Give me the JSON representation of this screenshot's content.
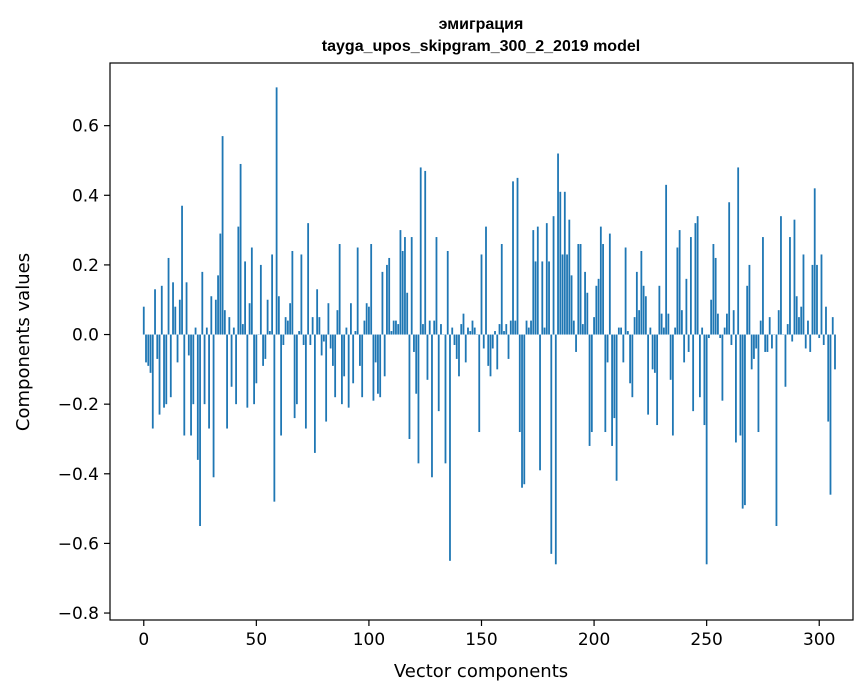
{
  "chart_data": {
    "type": "bar",
    "title_line1": "эмиграция",
    "title_line2": "tayga_upos_skipgram_300_2_2019 model",
    "xlabel": "Vector components",
    "ylabel": "Components values",
    "xlim": [
      -15,
      315
    ],
    "ylim": [
      -0.82,
      0.78
    ],
    "xticks": [
      0,
      50,
      100,
      150,
      200,
      250,
      300
    ],
    "xtick_labels": [
      "0",
      "50",
      "100",
      "150",
      "200",
      "250",
      "300"
    ],
    "yticks": [
      -0.8,
      -0.6,
      -0.4,
      -0.2,
      0.0,
      0.2,
      0.4,
      0.6
    ],
    "ytick_labels": [
      "−0.8",
      "−0.6",
      "−0.4",
      "−0.2",
      "0.0",
      "0.2",
      "0.4",
      "0.6"
    ],
    "bar_color": "#1f77b4",
    "values": [
      0.08,
      -0.08,
      -0.09,
      -0.11,
      -0.27,
      0.13,
      -0.07,
      -0.23,
      0.14,
      -0.21,
      -0.2,
      0.22,
      -0.18,
      0.15,
      0.08,
      -0.08,
      0.1,
      0.37,
      -0.29,
      0.15,
      -0.06,
      -0.29,
      -0.2,
      0.02,
      -0.36,
      -0.55,
      0.18,
      -0.2,
      0.02,
      -0.27,
      0.11,
      -0.41,
      0.1,
      0.17,
      0.29,
      0.57,
      0.07,
      -0.27,
      0.05,
      -0.15,
      0.02,
      -0.2,
      0.31,
      0.49,
      0.03,
      0.21,
      -0.21,
      0.09,
      0.25,
      -0.2,
      -0.14,
      0.0,
      0.2,
      -0.09,
      -0.07,
      0.1,
      0.01,
      0.23,
      -0.48,
      0.71,
      0.11,
      -0.29,
      -0.03,
      0.05,
      0.04,
      0.09,
      0.24,
      -0.24,
      -0.2,
      0.01,
      0.23,
      -0.03,
      -0.27,
      0.32,
      -0.03,
      0.05,
      -0.34,
      0.13,
      0.05,
      -0.06,
      -0.02,
      -0.25,
      0.09,
      -0.04,
      -0.09,
      -0.18,
      0.07,
      0.26,
      -0.2,
      -0.12,
      0.02,
      -0.21,
      0.09,
      -0.14,
      0.01,
      0.25,
      -0.09,
      -0.18,
      0.04,
      0.09,
      0.08,
      0.26,
      -0.19,
      -0.08,
      -0.17,
      -0.18,
      0.18,
      -0.12,
      0.2,
      0.22,
      0.01,
      0.04,
      0.04,
      0.03,
      0.3,
      0.24,
      0.28,
      0.12,
      -0.3,
      0.28,
      -0.05,
      -0.17,
      -0.37,
      0.48,
      0.03,
      0.47,
      -0.13,
      0.04,
      -0.41,
      0.04,
      0.28,
      -0.22,
      0.03,
      0.0,
      -0.37,
      0.24,
      -0.65,
      0.02,
      -0.03,
      -0.07,
      -0.12,
      0.03,
      0.06,
      -0.08,
      0.02,
      0.01,
      0.04,
      0.02,
      0.0,
      -0.28,
      0.23,
      -0.04,
      0.31,
      -0.09,
      -0.12,
      -0.04,
      0.01,
      -0.1,
      0.03,
      0.26,
      0.01,
      0.03,
      -0.07,
      0.04,
      0.44,
      0.04,
      0.45,
      -0.28,
      -0.44,
      -0.43,
      0.04,
      0.02,
      0.04,
      0.3,
      0.21,
      0.31,
      -0.39,
      0.21,
      0.02,
      0.32,
      0.21,
      -0.63,
      0.34,
      -0.66,
      0.52,
      0.41,
      0.23,
      0.41,
      0.23,
      0.33,
      0.17,
      0.04,
      -0.05,
      0.26,
      0.26,
      0.03,
      0.18,
      0.12,
      -0.32,
      -0.28,
      0.05,
      0.14,
      0.16,
      0.31,
      0.26,
      -0.28,
      -0.08,
      0.29,
      -0.32,
      -0.24,
      -0.42,
      0.02,
      0.02,
      -0.08,
      0.25,
      0.01,
      -0.14,
      -0.18,
      0.05,
      0.18,
      0.07,
      0.24,
      0.14,
      0.11,
      -0.23,
      0.02,
      -0.1,
      -0.11,
      -0.26,
      0.14,
      0.06,
      0.02,
      0.43,
      0.06,
      -0.13,
      -0.29,
      0.02,
      0.25,
      0.3,
      0.07,
      -0.08,
      0.16,
      -0.05,
      0.28,
      -0.22,
      0.32,
      0.34,
      -0.18,
      0.02,
      -0.26,
      -0.66,
      -0.01,
      0.1,
      0.26,
      0.22,
      0.06,
      -0.01,
      -0.19,
      0.02,
      0.06,
      0.38,
      -0.03,
      0.07,
      -0.31,
      0.48,
      -0.29,
      -0.5,
      -0.49,
      0.14,
      0.2,
      -0.1,
      -0.07,
      -0.04,
      -0.28,
      0.04,
      0.28,
      -0.05,
      -0.05,
      0.05,
      -0.04,
      0.0,
      -0.55,
      0.07,
      0.34,
      0.0,
      -0.15,
      0.03,
      0.28,
      -0.02,
      0.33,
      0.11,
      0.05,
      0.08,
      0.23,
      -0.04,
      0.04,
      -0.05,
      0.2,
      0.42,
      0.2,
      -0.01,
      0.23,
      -0.03,
      0.08,
      -0.25,
      -0.46,
      0.05,
      -0.1
    ]
  }
}
